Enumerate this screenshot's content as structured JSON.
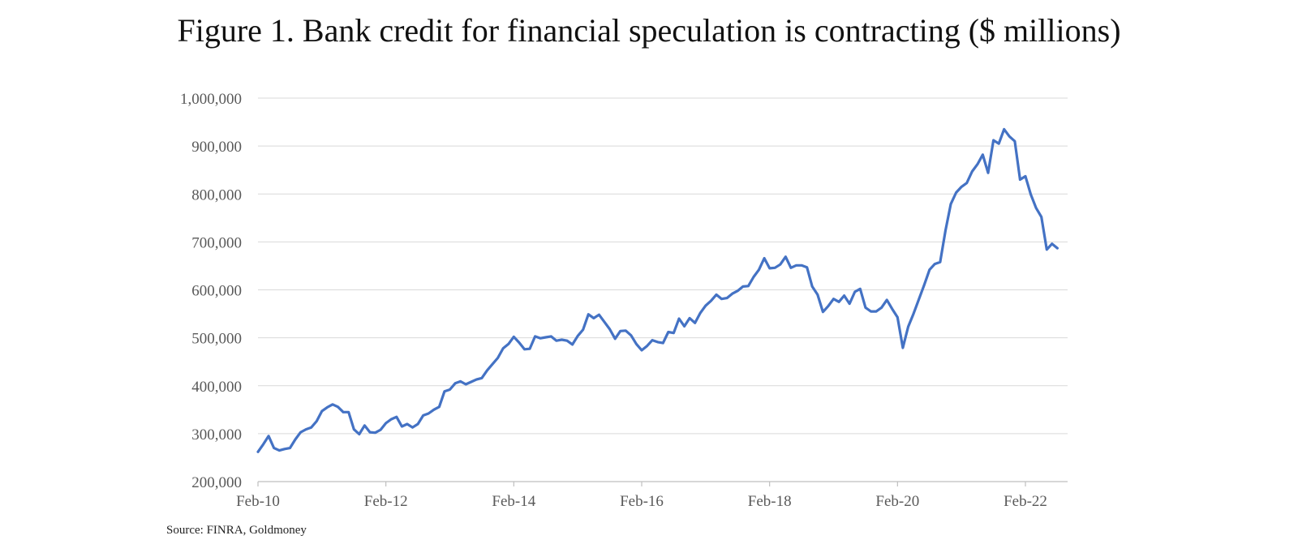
{
  "chart_data": {
    "type": "line",
    "title": "Figure 1. Bank credit for financial speculation is contracting ($ millions)",
    "xlabel": "",
    "ylabel": "",
    "ylim": [
      200000,
      1000000
    ],
    "yticks": [
      200000,
      300000,
      400000,
      500000,
      600000,
      700000,
      800000,
      900000,
      1000000
    ],
    "ytick_labels": [
      "200,000",
      "300,000",
      "400,000",
      "500,000",
      "600,000",
      "700,000",
      "800,000",
      "900,000",
      "1,000,000"
    ],
    "xtick_labels": [
      "Feb-10",
      "Feb-12",
      "Feb-14",
      "Feb-16",
      "Feb-18",
      "Feb-20",
      "Feb-22"
    ],
    "x_start": "Feb-10",
    "x_end": "Jul-22",
    "grid": "horizontal",
    "legend": "none",
    "colors": {
      "line": "#4472C4",
      "grid": "#D9D9D9",
      "axis": "#BFBFBF",
      "tick_text": "#595959"
    },
    "series": [
      {
        "values": [
          262000,
          278000,
          295000,
          270000,
          265000,
          268000,
          270000,
          288000,
          303000,
          309000,
          313000,
          326000,
          347000,
          355000,
          361000,
          356000,
          345000,
          345000,
          309000,
          299000,
          317000,
          303000,
          302000,
          308000,
          322000,
          330000,
          335000,
          315000,
          320000,
          313000,
          320000,
          338000,
          342000,
          350000,
          356000,
          388000,
          392000,
          405000,
          409000,
          403000,
          408000,
          413000,
          416000,
          432000,
          445000,
          458000,
          478000,
          487000,
          502000,
          490000,
          476000,
          477000,
          503000,
          499000,
          501000,
          503000,
          494000,
          496000,
          494000,
          486000,
          504000,
          517000,
          549000,
          541000,
          548000,
          533000,
          518000,
          498000,
          514000,
          515000,
          505000,
          487000,
          474000,
          483000,
          495000,
          491000,
          489000,
          512000,
          510000,
          540000,
          524000,
          541000,
          531000,
          552000,
          567000,
          577000,
          590000,
          581000,
          583000,
          592000,
          598000,
          607000,
          608000,
          627000,
          642000,
          666000,
          645000,
          646000,
          653000,
          669000,
          646000,
          651000,
          651000,
          647000,
          607000,
          590000,
          554000,
          566000,
          581000,
          575000,
          588000,
          571000,
          596000,
          602000,
          563000,
          555000,
          555000,
          563000,
          579000,
          560000,
          543000,
          479000,
          523000,
          550000,
          580000,
          610000,
          642000,
          654000,
          658000,
          724000,
          779000,
          803000,
          815000,
          823000,
          847000,
          862000,
          882000,
          844000,
          912000,
          905000,
          935000,
          920000,
          910000,
          830000,
          837000,
          799000,
          771000,
          752000,
          684000,
          696000,
          687000
        ]
      }
    ]
  },
  "source": "Source: FINRA, Goldmoney"
}
